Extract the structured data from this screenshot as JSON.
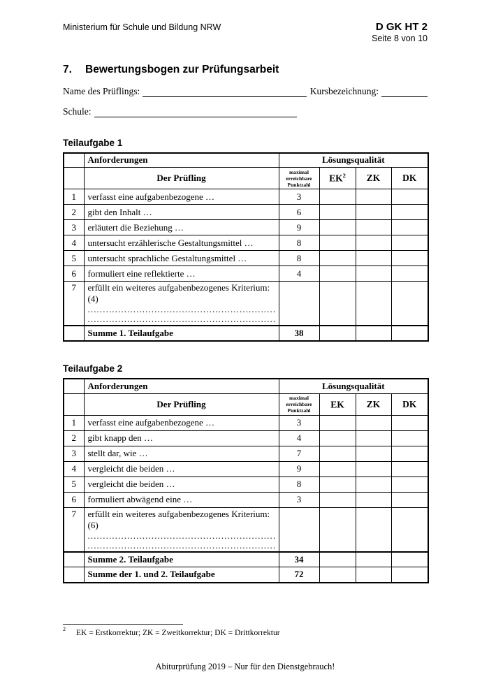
{
  "header": {
    "ministry": "Ministerium für Schule und Bildung NRW",
    "code": "D GK HT 2",
    "page": "Seite 8 von 10"
  },
  "title": {
    "number": "7.",
    "text": "Bewertungsbogen zur Prüfungsarbeit"
  },
  "form": {
    "name_label": "Name des Prüflings:",
    "course_label": "Kursbezeichnung:",
    "school_label": "Schule:"
  },
  "dots": "...........................................................................................................................................",
  "tables": [
    {
      "section_title": "Teilaufgabe 1",
      "col_requirements": "Anforderungen",
      "col_quality": "Lösungsqualität",
      "subject": "Der Prüfling",
      "col_max_points": "maximal erreichbare Punktzahl",
      "col_ek": "EK",
      "ek_sup": "2",
      "col_zk": "ZK",
      "col_dk": "DK",
      "rows": [
        {
          "num": "1",
          "text": "verfasst eine aufgabenbezogene …",
          "points": "3"
        },
        {
          "num": "2",
          "text": "gibt den Inhalt …",
          "points": "6"
        },
        {
          "num": "3",
          "text": "erläutert die Beziehung …",
          "points": "9"
        },
        {
          "num": "4",
          "text": "untersucht erzählerische Gestaltungsmittel …",
          "points": "8"
        },
        {
          "num": "5",
          "text": "untersucht sprachliche Gestaltungsmittel …",
          "points": "8"
        },
        {
          "num": "6",
          "text": "formuliert eine reflektierte …",
          "points": "4"
        },
        {
          "num": "7",
          "text": "erfüllt ein weiteres aufgabenbezogenes Kriterium: (4)",
          "points": "",
          "dotted": true
        }
      ],
      "sums": [
        {
          "label": "Summe 1. Teilaufgabe",
          "points": "38"
        }
      ]
    },
    {
      "section_title": "Teilaufgabe 2",
      "col_requirements": "Anforderungen",
      "col_quality": "Lösungsqualität",
      "subject": "Der Prüfling",
      "col_max_points": "maximal erreichbare Punktzahl",
      "col_ek": "EK",
      "ek_sup": "",
      "col_zk": "ZK",
      "col_dk": "DK",
      "rows": [
        {
          "num": "1",
          "text": "verfasst eine aufgabenbezogene …",
          "points": "3"
        },
        {
          "num": "2",
          "text": "gibt knapp den …",
          "points": "4"
        },
        {
          "num": "3",
          "text": "stellt dar, wie …",
          "points": "7"
        },
        {
          "num": "4",
          "text": "vergleicht die beiden …",
          "points": "9"
        },
        {
          "num": "5",
          "text": "vergleicht die beiden …",
          "points": "8"
        },
        {
          "num": "6",
          "text": "formuliert abwägend eine …",
          "points": "3"
        },
        {
          "num": "7",
          "text": "erfüllt ein weiteres aufgabenbezogenes Kriterium: (6)",
          "points": "",
          "dotted": true
        }
      ],
      "sums": [
        {
          "label": "Summe 2. Teilaufgabe",
          "points": "34"
        },
        {
          "label": "Summe der 1. und 2. Teilaufgabe",
          "points": "72"
        }
      ]
    }
  ],
  "footnote": {
    "marker": "2",
    "text": "EK = Erstkorrektur; ZK = Zweitkorrektur; DK = Drittkorrektur"
  },
  "footer": {
    "text": "Abiturprüfung 2019 – Nur für den Dienstgebrauch!"
  }
}
